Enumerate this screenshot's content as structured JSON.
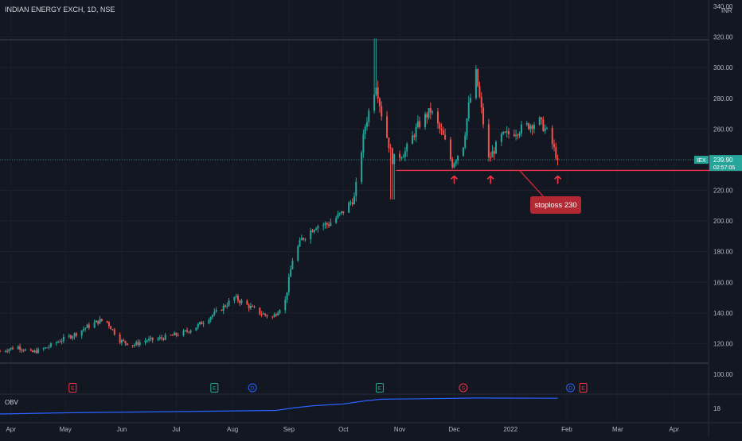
{
  "header": {
    "symbol_line": "INDIAN ENERGY EXCH, 1D, NSE"
  },
  "currency": "INR",
  "price_badge": {
    "ticker": "IEX",
    "price": "239.90",
    "countdown": "02:57:05"
  },
  "annotation": {
    "text": "stoploss 230",
    "level": 233
  },
  "obv": {
    "label": "OBV",
    "axis_value": "18"
  },
  "events": [
    {
      "letter": "E",
      "kind": "earnings-past",
      "color": "#f23645",
      "date": "2021-05-05"
    },
    {
      "letter": "E",
      "kind": "earnings",
      "color": "#22ab94",
      "date": "2021-07-22"
    },
    {
      "letter": "D",
      "kind": "dividend",
      "color": "#2962ff",
      "date": "2021-08-12"
    },
    {
      "letter": "E",
      "kind": "earnings",
      "color": "#22ab94",
      "date": "2021-10-21"
    },
    {
      "letter": "S",
      "kind": "split",
      "color": "#f23645",
      "date": "2021-12-06"
    },
    {
      "letter": "D",
      "kind": "dividend",
      "color": "#2962ff",
      "date": "2022-02-03"
    },
    {
      "letter": "E",
      "kind": "earnings-upcoming",
      "color": "#f23645",
      "date": "2022-02-10"
    }
  ],
  "chart_data": {
    "type": "candlestick",
    "title": "INDIAN ENERGY EXCH, 1D, NSE",
    "y_ticks": [
      "100.00",
      "120.00",
      "140.00",
      "160.00",
      "180.00",
      "200.00",
      "220.00",
      "240.00",
      "260.00",
      "280.00",
      "300.00",
      "320.00",
      "340.00"
    ],
    "ylim": [
      100,
      340
    ],
    "x_ticks": [
      {
        "label": "Apr",
        "date": "2021-04-01"
      },
      {
        "label": "May",
        "date": "2021-05-01"
      },
      {
        "label": "Jun",
        "date": "2021-06-01"
      },
      {
        "label": "Jul",
        "date": "2021-07-01"
      },
      {
        "label": "Aug",
        "date": "2021-08-01"
      },
      {
        "label": "Sep",
        "date": "2021-09-01"
      },
      {
        "label": "Oct",
        "date": "2021-10-01"
      },
      {
        "label": "Nov",
        "date": "2021-11-01"
      },
      {
        "label": "Dec",
        "date": "2021-12-01"
      },
      {
        "label": "2022",
        "date": "2022-01-01"
      },
      {
        "label": "Feb",
        "date": "2022-02-01"
      },
      {
        "label": "Mar",
        "date": "2022-03-01"
      },
      {
        "label": "Apr",
        "date": "2022-04-01"
      }
    ],
    "xlim": [
      "2021-03-26",
      "2022-04-20"
    ],
    "up_color": "#26a69a",
    "down_color": "#ef5350",
    "close_series": [
      [
        "2021-03-26",
        115
      ],
      [
        "2021-04-05",
        118
      ],
      [
        "2021-04-12",
        114
      ],
      [
        "2021-04-20",
        117
      ],
      [
        "2021-04-28",
        122
      ],
      [
        "2021-05-06",
        126
      ],
      [
        "2021-05-13",
        131
      ],
      [
        "2021-05-20",
        135
      ],
      [
        "2021-05-24",
        134
      ],
      [
        "2021-05-31",
        122
      ],
      [
        "2021-06-07",
        119
      ],
      [
        "2021-06-14",
        122
      ],
      [
        "2021-06-21",
        123
      ],
      [
        "2021-06-28",
        125
      ],
      [
        "2021-07-05",
        127
      ],
      [
        "2021-07-12",
        131
      ],
      [
        "2021-07-19",
        137
      ],
      [
        "2021-07-26",
        143
      ],
      [
        "2021-08-02",
        150
      ],
      [
        "2021-08-09",
        145
      ],
      [
        "2021-08-16",
        140
      ],
      [
        "2021-08-23",
        137
      ],
      [
        "2021-08-30",
        148
      ],
      [
        "2021-09-03",
        175
      ],
      [
        "2021-09-08",
        188
      ],
      [
        "2021-09-16",
        197
      ],
      [
        "2021-09-23",
        198
      ],
      [
        "2021-09-30",
        205
      ],
      [
        "2021-10-07",
        215
      ],
      [
        "2021-10-13",
        262
      ],
      [
        "2021-10-19",
        290
      ],
      [
        "2021-10-22",
        270
      ],
      [
        "2021-10-28",
        240
      ],
      [
        "2021-11-04",
        245
      ],
      [
        "2021-11-11",
        262
      ],
      [
        "2021-11-18",
        272
      ],
      [
        "2021-11-25",
        255
      ],
      [
        "2021-11-30",
        237
      ],
      [
        "2021-12-06",
        250
      ],
      [
        "2021-12-09",
        275
      ],
      [
        "2021-12-13",
        296
      ],
      [
        "2021-12-16",
        272
      ],
      [
        "2021-12-20",
        240
      ],
      [
        "2021-12-27",
        255
      ],
      [
        "2022-01-03",
        258
      ],
      [
        "2022-01-10",
        262
      ],
      [
        "2022-01-17",
        265
      ],
      [
        "2022-01-21",
        258
      ],
      [
        "2022-01-24",
        250
      ],
      [
        "2022-01-27",
        239.9
      ]
    ],
    "wick_extremes": {
      "high": 319,
      "low": 214
    },
    "obv_series": [
      [
        "2021-03-26",
        0.3
      ],
      [
        "2021-05-01",
        0.35
      ],
      [
        "2021-07-01",
        0.4
      ],
      [
        "2021-08-25",
        0.45
      ],
      [
        "2021-09-03",
        0.55
      ],
      [
        "2021-09-15",
        0.65
      ],
      [
        "2021-10-01",
        0.72
      ],
      [
        "2021-10-13",
        0.85
      ],
      [
        "2021-10-22",
        0.92
      ],
      [
        "2021-11-15",
        0.94
      ],
      [
        "2021-12-13",
        0.97
      ],
      [
        "2022-01-27",
        0.96
      ]
    ]
  }
}
